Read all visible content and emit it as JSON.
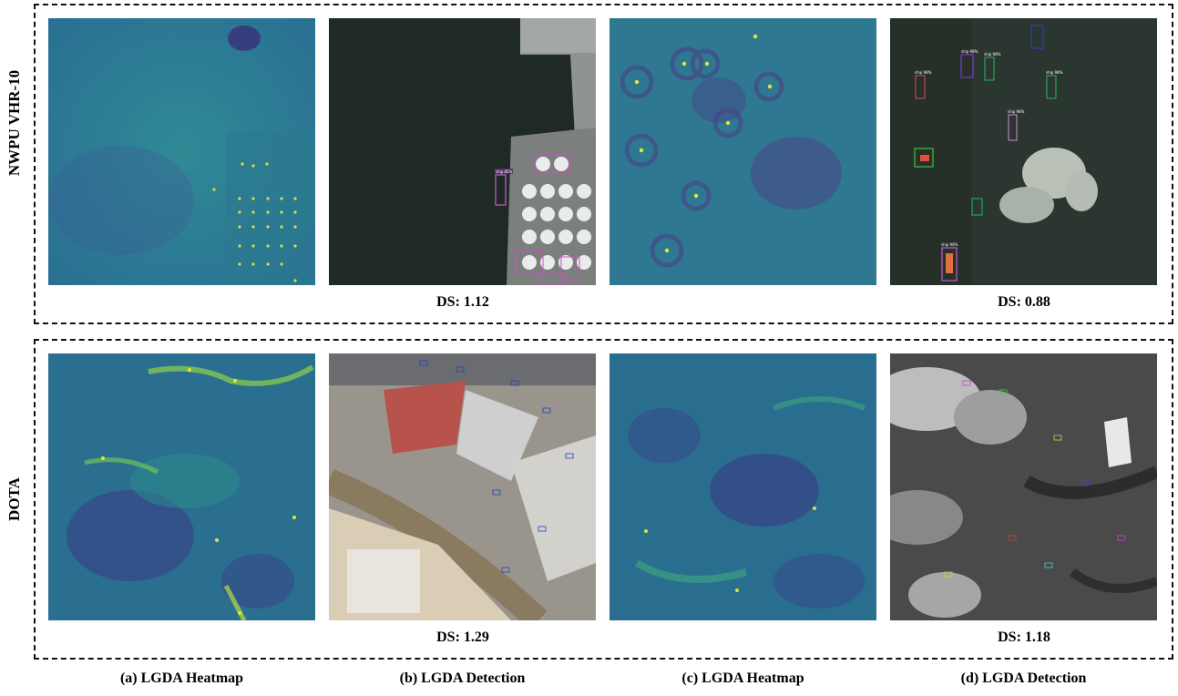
{
  "rows": [
    {
      "label": "NWPU VHR-10",
      "ds_left": "DS: 1.12",
      "ds_right": "DS: 0.88"
    },
    {
      "label": "DOTA",
      "ds_left": "DS: 1.29",
      "ds_right": "DS: 1.18"
    }
  ],
  "captions": [
    "(a) LGDA Heatmap",
    "(b) LGDA Detection",
    "(c) LGDA Heatmap",
    "(d) LGDA Detection"
  ],
  "colors": {
    "heatmap_low": "#3b4d8f",
    "heatmap_mid": "#2c7f96",
    "heatmap_high": "#f2e62a",
    "sea": "#1f2a26",
    "dashed_border": "#111111"
  },
  "box_labels": {
    "ship_b1": "ship 85%",
    "ship_d1": "ship 98%",
    "ship_d2": "ship 98%",
    "ship_d3": "ship 98%",
    "ship_d4": "ship 98%",
    "ship_d5": "ship 98%",
    "ship_d6": "ship 98%",
    "ship_d7": "ship 98%"
  }
}
